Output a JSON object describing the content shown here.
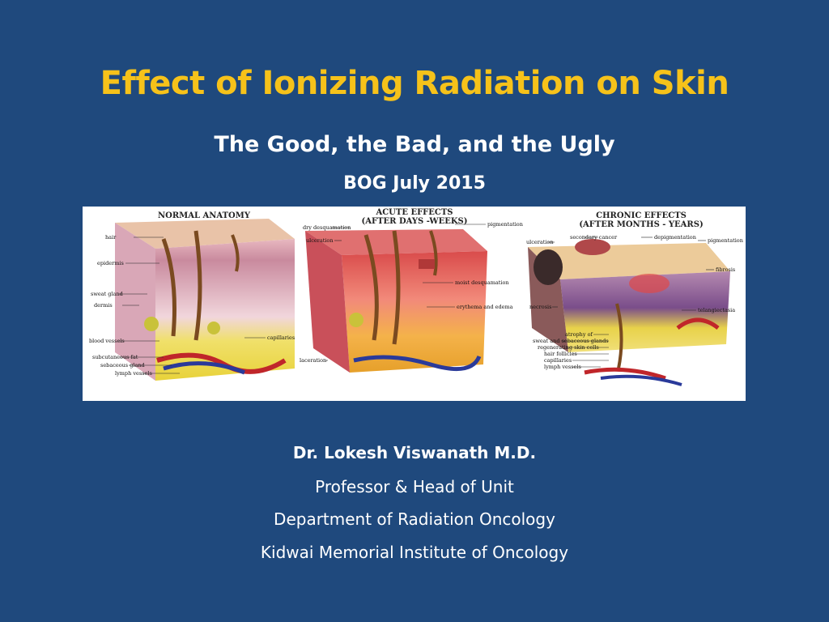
{
  "slide": {
    "title": "Effect of Ionizing Radiation on Skin",
    "subtitle": "The Good, the Bad, and the Ugly",
    "event": "BOG July 2015",
    "figure": {
      "panels": [
        {
          "title_lines": [
            "NORMAL ANATOMY"
          ],
          "labels": [
            "hair",
            "epidermis",
            "sweat gland",
            "dermis",
            "blood vessels",
            "subcutaneous fat",
            "sebaceous gland",
            "lymph vessels",
            "capillaries"
          ]
        },
        {
          "title_lines": [
            "ACUTE EFFECTS",
            "(AFTER DAYS -WEEKS)"
          ],
          "labels": [
            "dry desquamation",
            "ulceration",
            "pigmentation",
            "moist desquamation",
            "erythema and edema",
            "laceration"
          ]
        },
        {
          "title_lines": [
            "CHRONIC EFFECTS",
            "(AFTER MONTHS - YEARS)"
          ],
          "labels": [
            "secondary cancer",
            "ulceration",
            "depigmentation",
            "pigmentation",
            "fibrosis",
            "necrosis",
            "telangiectasia",
            "atrophy of",
            "sweat and sebaceous glands",
            "regenerating skin cells",
            "hair follicles",
            "capillaries",
            "lymph vessels"
          ]
        }
      ]
    },
    "author": {
      "name": "Dr. Lokesh Viswanath M.D.",
      "position": "Professor & Head of Unit",
      "department": "Department of Radiation Oncology",
      "institution": "Kidwai Memorial Institute of Oncology"
    }
  }
}
